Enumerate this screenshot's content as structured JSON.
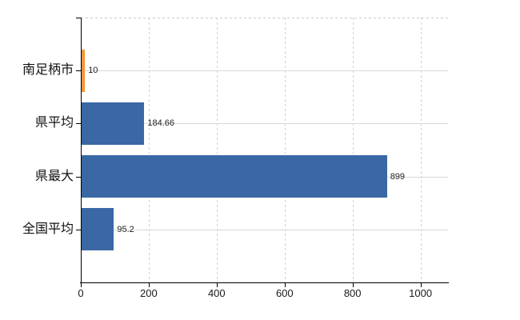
{
  "chart_data": {
    "type": "bar",
    "orientation": "horizontal",
    "title": "",
    "xlabel": "",
    "ylabel": "",
    "categories": [
      "南足柄市",
      "県平均",
      "県最大",
      "全国平均"
    ],
    "values": [
      10,
      184.66,
      899,
      95.2
    ],
    "value_labels": [
      "10",
      "184.66",
      "899",
      "95.2"
    ],
    "bar_colors": [
      "#f0953a",
      "#3a68a4",
      "#3a68a4",
      "#3a68a4"
    ],
    "x_ticks": [
      0,
      200,
      400,
      600,
      800,
      1000
    ],
    "x_tick_labels": [
      "0",
      "200",
      "400",
      "600",
      "800",
      "1000"
    ],
    "xlim": [
      0,
      1081
    ],
    "grid": true,
    "grid_horizontal_style": "solid",
    "grid_vertical_style": "dashed",
    "legend": false
  },
  "colors": {
    "background": "#ffffff",
    "axis": "#000000",
    "grid": "#d5d5d5",
    "text": "#1a1a1a",
    "bar_blue": "#3a68a4",
    "bar_orange": "#f0953a"
  }
}
